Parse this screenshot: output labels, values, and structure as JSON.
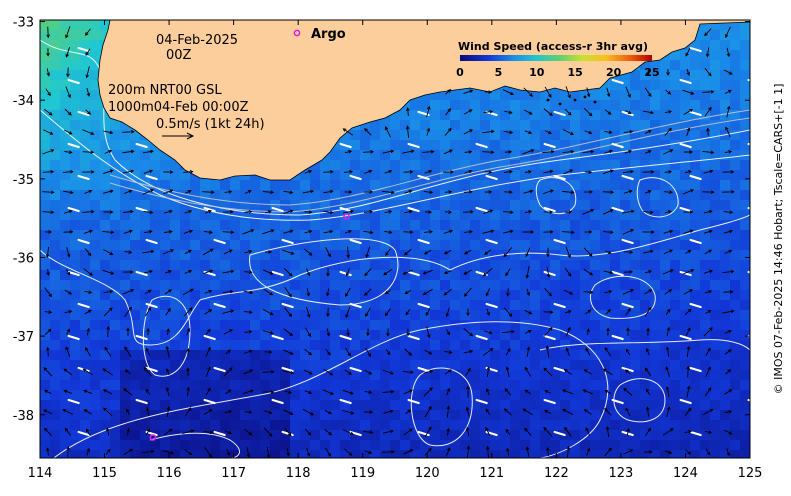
{
  "map": {
    "lon_ticks": [
      "114",
      "115",
      "116",
      "117",
      "118",
      "119",
      "120",
      "121",
      "122",
      "123",
      "124",
      "125"
    ],
    "lat_ticks": [
      "-33",
      "-34",
      "-35",
      "-36",
      "-37",
      "-38"
    ],
    "lon_range": [
      114,
      125
    ],
    "lat_range": [
      -38.55,
      -32.98
    ]
  },
  "annotations": {
    "date": "04-Feb-2025",
    "time": "00Z",
    "line1": "200m  NRT00 GSL",
    "line2": "1000m04-Feb 00:00Z",
    "scale": "0.5m/s (1kt 24h)"
  },
  "argo": {
    "label": "Argo",
    "color": "#e020e0",
    "floats": [
      {
        "lon": 118.75,
        "lat": -35.48
      },
      {
        "lon": 115.75,
        "lat": -38.29
      }
    ]
  },
  "legend": {
    "title": "Wind Speed (access-r 3hr avg)",
    "ticks": [
      "0",
      "5",
      "10",
      "15",
      "20",
      "25"
    ],
    "range": [
      0,
      25
    ]
  },
  "credit": "© IMOS 07-Feb-2025 14:46 Hobart; Tscale=CARS+[-1 1]",
  "colors": {
    "land": "#fcce9c",
    "wind_barb": "#ffffff",
    "current_arrow": "#000000",
    "contour": "#ffffff"
  }
}
